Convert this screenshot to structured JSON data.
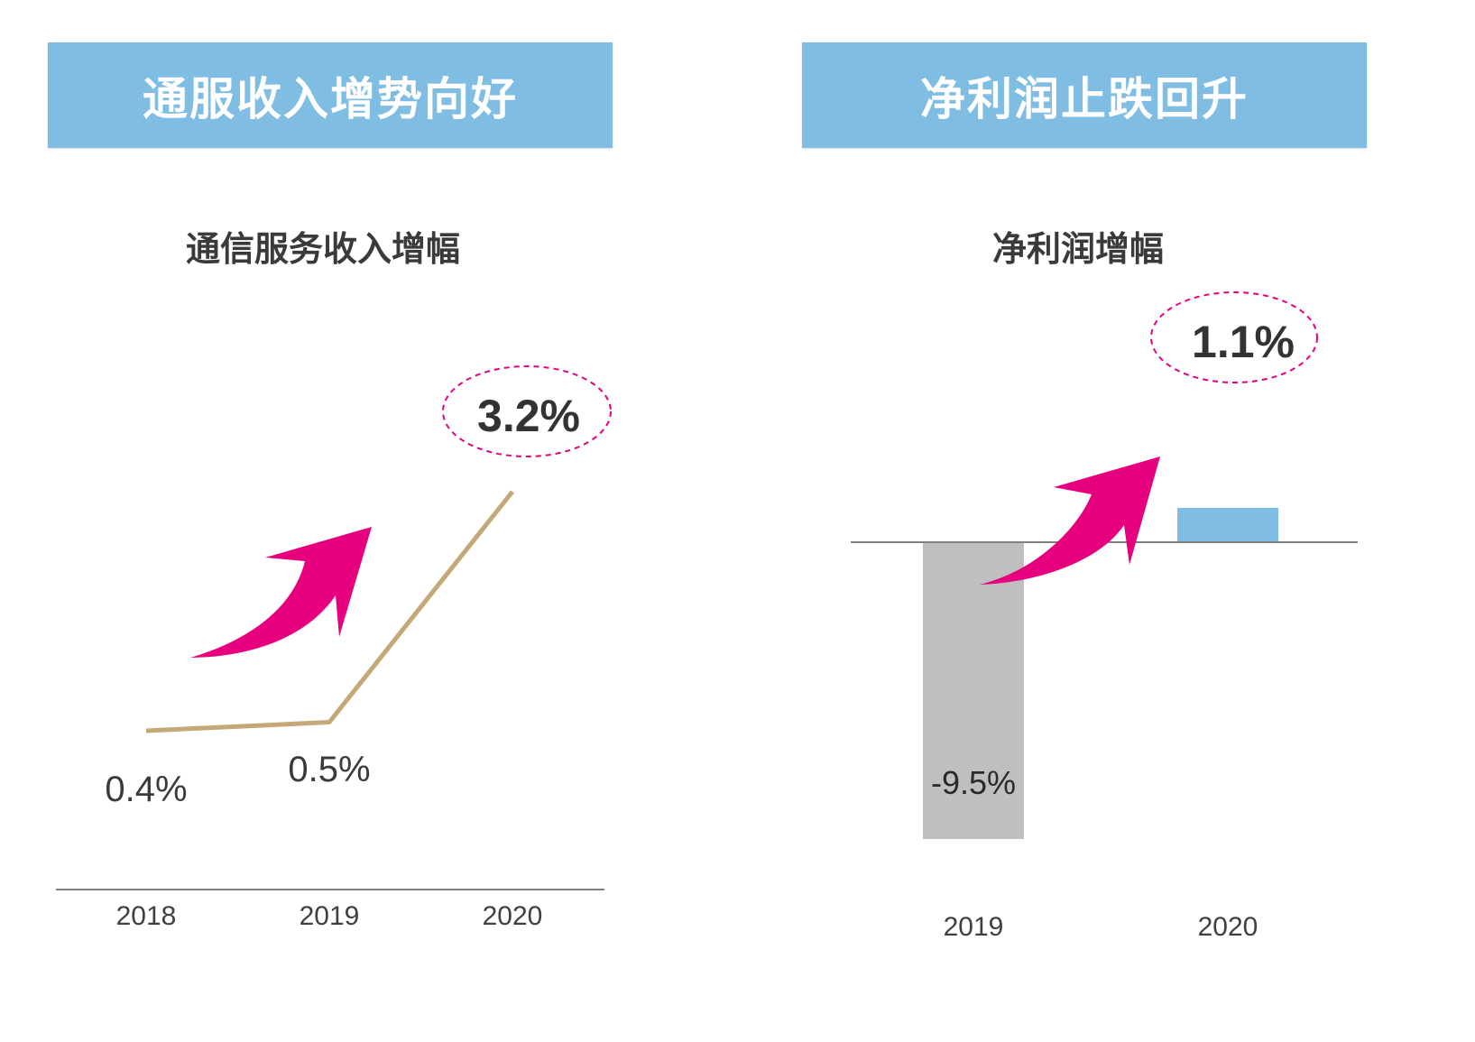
{
  "left_panel": {
    "banner_title": "通服收入增势向好",
    "chart_title": "通信服务收入增幅"
  },
  "right_panel": {
    "banner_title": "净利润止跌回升",
    "chart_title": "净利润增幅"
  },
  "colors": {
    "banner": "#7fbde3",
    "line": "#c4a877",
    "arrow": "#e6007e",
    "highlight_ring": "#e6007e",
    "bar_negative": "#bfbfbf",
    "bar_positive": "#7fbde3",
    "axis": "#808080"
  },
  "chart_data": [
    {
      "type": "line",
      "title": "通信服务收入增幅",
      "categories": [
        "2018",
        "2019",
        "2020"
      ],
      "series": [
        {
          "values": [
            0.4,
            0.5,
            3.2
          ]
        }
      ],
      "data_labels": [
        "0.4%",
        "0.5%",
        "3.2%"
      ],
      "highlight_label": "3.2%",
      "ylim": [
        0,
        3.4
      ],
      "grid": false,
      "legend": "none",
      "annotation": "upward-arrow-icon"
    },
    {
      "type": "bar",
      "title": "净利润增幅",
      "categories": [
        "2019",
        "2020"
      ],
      "values": [
        -9.5,
        1.1
      ],
      "data_labels": [
        "-9.5%",
        "1.1%"
      ],
      "highlight_label": "1.1%",
      "ylim": [
        -9.5,
        1.1
      ],
      "grid": false,
      "legend": "none",
      "annotation": "upward-arrow-icon"
    }
  ]
}
